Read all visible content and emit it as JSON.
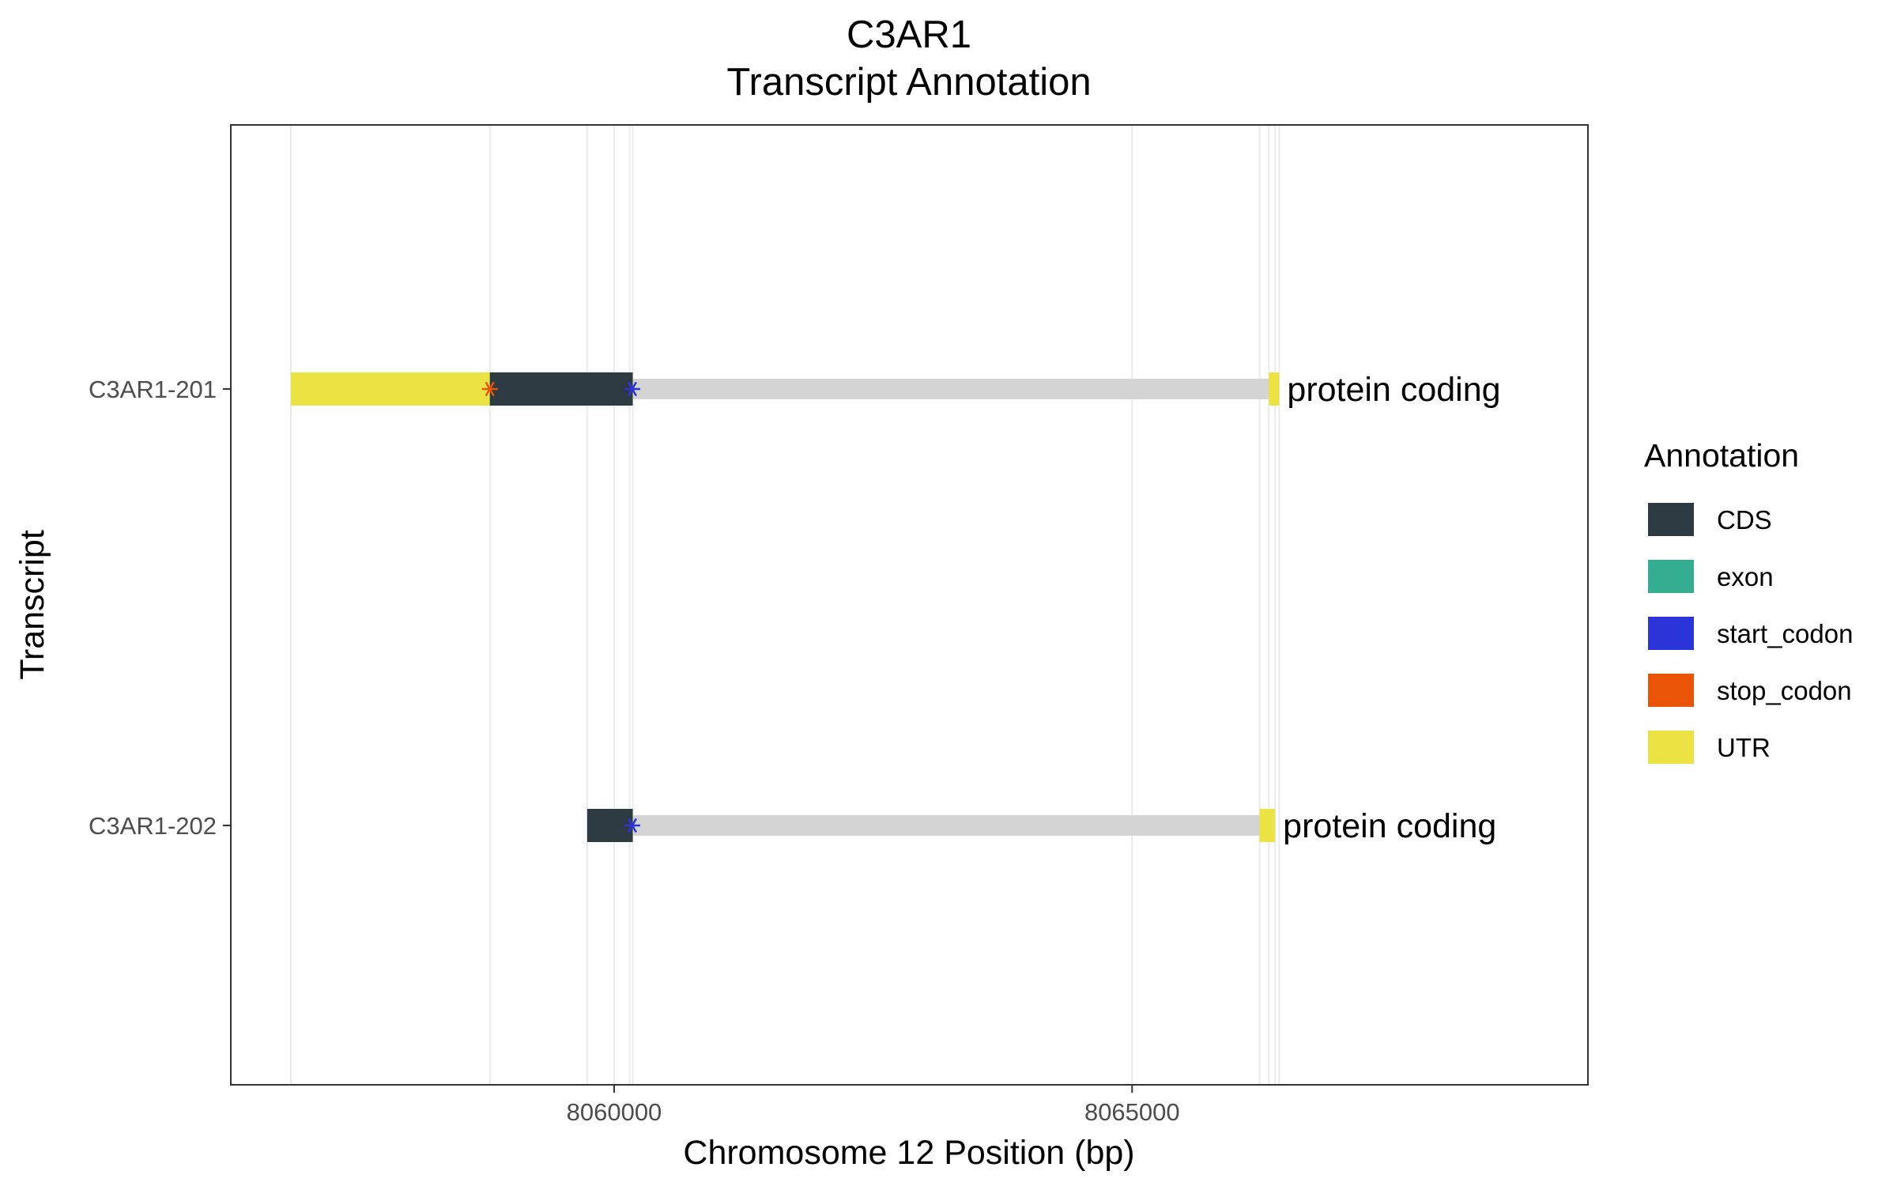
{
  "chart_data": {
    "type": "gene-track",
    "title_lines": [
      "C3AR1",
      "Transcript Annotation"
    ],
    "xlabel": "Chromosome 12 Position (bp)",
    "ylabel": "Transcript",
    "xlim": [
      8056300,
      8069400
    ],
    "xticks": [
      8060000,
      8065000
    ],
    "xtick_labels": [
      "8060000",
      "8065000"
    ],
    "grid": true,
    "legend": {
      "title": "Annotation",
      "placement": "right",
      "items": [
        {
          "key": "CDS",
          "label": "CDS",
          "color": "#2e3a42"
        },
        {
          "key": "exon",
          "label": "exon",
          "color": "#35ad90"
        },
        {
          "key": "start_codon",
          "label": "start_codon",
          "color": "#2b34d9"
        },
        {
          "key": "stop_codon",
          "label": "stop_codon",
          "color": "#ea5407"
        },
        {
          "key": "UTR",
          "label": "UTR",
          "color": "#ebe243"
        }
      ]
    },
    "intron_color": "#d4d4d4",
    "transcripts": [
      {
        "name": "C3AR1-202",
        "label": "protein coding",
        "intron": [
          8060150,
          8066380
        ],
        "features": [
          {
            "type": "CDS",
            "start": 8059740,
            "end": 8060180
          },
          {
            "type": "UTR",
            "start": 8066230,
            "end": 8066380
          }
        ],
        "codons": [
          {
            "type": "start_codon",
            "pos": 8060175
          }
        ]
      },
      {
        "name": "C3AR1-201",
        "label": "protein coding",
        "intron": [
          8060150,
          8066420
        ],
        "features": [
          {
            "type": "UTR",
            "start": 8056880,
            "end": 8058800
          },
          {
            "type": "CDS",
            "start": 8058800,
            "end": 8060180
          },
          {
            "type": "UTR",
            "start": 8066320,
            "end": 8066420
          }
        ],
        "codons": [
          {
            "type": "stop_codon",
            "pos": 8058800
          },
          {
            "type": "start_codon",
            "pos": 8060175
          }
        ]
      }
    ]
  }
}
